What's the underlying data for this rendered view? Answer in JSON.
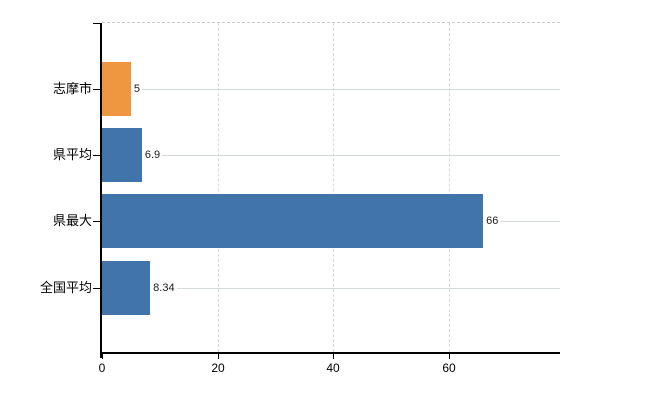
{
  "chart_data": {
    "type": "bar",
    "orientation": "horizontal",
    "title": "",
    "xlabel": "",
    "ylabel": "",
    "categories": [
      "志摩市",
      "県平均",
      "県最大",
      "全国平均"
    ],
    "values": [
      5,
      6.9,
      66,
      8.34
    ],
    "value_labels": [
      "5",
      "6.9",
      "66",
      "8.34"
    ],
    "bar_colors": [
      "#ee9640",
      "#4274ac",
      "#4274ac",
      "#4274ac"
    ],
    "x_ticks": [
      0,
      20,
      40,
      60
    ],
    "x_tick_labels": [
      "0",
      "20",
      "40",
      "60"
    ],
    "xlim": [
      0,
      79.3
    ],
    "legend": "none",
    "grid": {
      "vertical": "dashed",
      "horizontal": "solid-right-of-value-label"
    },
    "colors": {
      "highlight_bar": "#ee9640",
      "default_bar": "#4274ac",
      "axis": "#000000",
      "gridline_horizontal": "#d4dad4",
      "gridline_vertical": "#d8d8dc",
      "plot_top_border": "#cbcbcb",
      "background": "#ffffff",
      "text": "#000000"
    }
  }
}
